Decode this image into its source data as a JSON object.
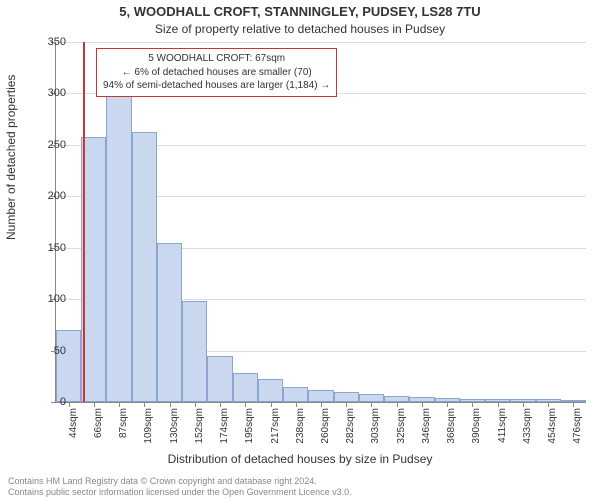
{
  "title_main": "5, WOODHALL CROFT, STANNINGLEY, PUDSEY, LS28 7TU",
  "title_sub": "Size of property relative to detached houses in Pudsey",
  "ylabel": "Number of detached properties",
  "xlabel": "Distribution of detached houses by size in Pudsey",
  "chart": {
    "type": "histogram",
    "ylim": [
      0,
      350
    ],
    "ytick_step": 50,
    "yticks": [
      0,
      50,
      100,
      150,
      200,
      250,
      300,
      350
    ],
    "xtick_labels": [
      "44sqm",
      "66sqm",
      "87sqm",
      "109sqm",
      "130sqm",
      "152sqm",
      "174sqm",
      "195sqm",
      "217sqm",
      "238sqm",
      "260sqm",
      "282sqm",
      "303sqm",
      "325sqm",
      "346sqm",
      "368sqm",
      "390sqm",
      "411sqm",
      "433sqm",
      "454sqm",
      "476sqm"
    ],
    "values": [
      70,
      258,
      298,
      263,
      155,
      98,
      45,
      28,
      22,
      15,
      12,
      10,
      8,
      6,
      5,
      4,
      3,
      3,
      3,
      3,
      2
    ],
    "bar_fill": "#c9d8ef",
    "bar_stroke": "#8aa5d0",
    "grid_color": "#dddddd",
    "background_color": "#ffffff",
    "marker_color": "#cc3333",
    "marker_bin_index": 1,
    "marker_position_in_bin": 0.05
  },
  "annotation": {
    "line1": "5 WOODHALL CROFT: 67sqm",
    "line2": "← 6% of detached houses are smaller (70)",
    "line3": "94% of semi-detached houses are larger (1,184) →"
  },
  "copyright": {
    "line1": "Contains HM Land Registry data © Crown copyright and database right 2024.",
    "line2": "Contains public sector information licensed under the Open Government Licence v3.0."
  }
}
